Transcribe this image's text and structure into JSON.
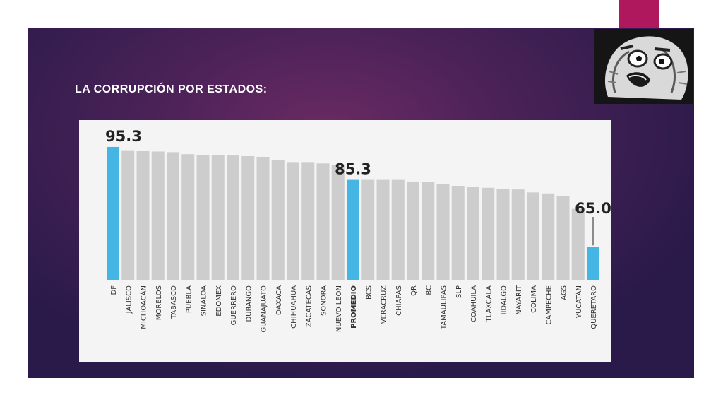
{
  "slide": {
    "title": "LA CORRUPCIÓN POR ESTADOS:",
    "accent_color": "#b0185e",
    "image_alt": "shocked-face-meme"
  },
  "chart_data": {
    "type": "bar",
    "title": "",
    "xlabel": "",
    "ylabel": "",
    "categories": [
      "DF",
      "JALISCO",
      "MICHOACÁN",
      "MORELOS",
      "TABASCO",
      "PUEBLA",
      "SINALOA",
      "EDOMEX",
      "GUERRERO",
      "DURANGO",
      "GUANAJUATO",
      "OAXACA",
      "CHIHUAHUA",
      "ZACATECAS",
      "SONORA",
      "NUEVO LEÓN",
      "PROMEDIO",
      "BCS",
      "VERACRUZ",
      "CHIAPAS",
      "QR",
      "BC",
      "TAMAULIPAS",
      "SLP",
      "COAHUILA",
      "TLAXCALA",
      "HIDALGO",
      "NAYARIT",
      "COLIMA",
      "CAMPECHE",
      "AGS",
      "YUCATÁN",
      "QUERÉTARO"
    ],
    "values": [
      95.3,
      94.3,
      94.0,
      93.9,
      93.7,
      93.1,
      92.9,
      92.9,
      92.7,
      92.5,
      92.3,
      91.3,
      90.7,
      90.7,
      90.3,
      89.9,
      85.3,
      85.3,
      85.3,
      85.3,
      84.8,
      84.6,
      84.1,
      83.5,
      83.1,
      82.9,
      82.6,
      82.4,
      81.5,
      81.2,
      80.5,
      76.5,
      65.0
    ],
    "highlight": [
      "DF",
      "PROMEDIO",
      "QUERÉTARO"
    ],
    "data_labels": [
      {
        "category": "DF",
        "text": "95.3"
      },
      {
        "category": "PROMEDIO",
        "text": "85.3"
      },
      {
        "category": "QUERÉTARO",
        "text": "65.0"
      }
    ],
    "colors": {
      "bar": "#cdcdcd",
      "highlight": "#45b5e3"
    },
    "ylim": [
      55,
      97
    ],
    "grid": false,
    "legend": "none"
  }
}
